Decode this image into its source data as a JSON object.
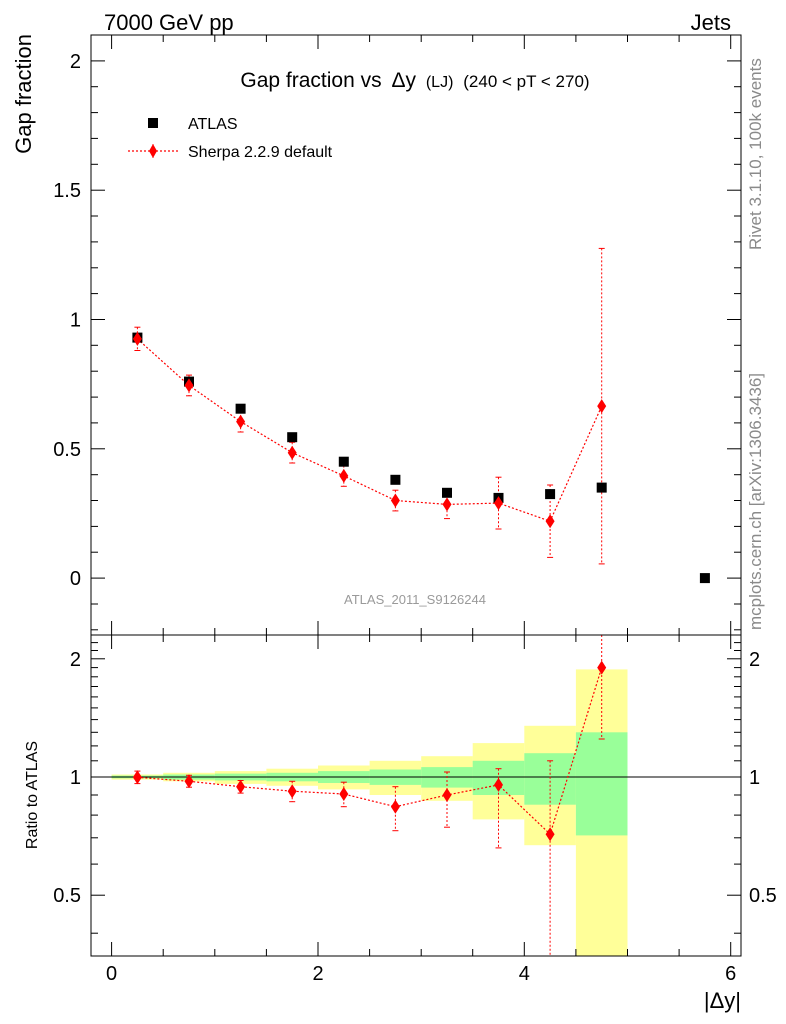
{
  "header": {
    "left": "7000 GeV pp",
    "right": "Jets"
  },
  "side_labels": {
    "rivet": "Rivet 3.1.10,  100k events",
    "mcplots": "mcplots.cern.ch [arXiv:1306.3436]"
  },
  "watermark": "ATLAS_2011_S9126244",
  "chart_data": [
    {
      "type": "scatter",
      "panel": "main",
      "title": {
        "main": "Gap fraction vs",
        "symbol": "Δy",
        "sub": "(LJ)",
        "range": "(240 < pT < 270)"
      },
      "xlabel": "|Δy|",
      "ylabel": "Gap fraction",
      "xlim": [
        -0.2,
        6.1
      ],
      "ylim": [
        -0.22,
        2.1
      ],
      "y_ticks": [
        "0",
        "0.5",
        "1",
        "1.5",
        "2"
      ],
      "y_tick_values": [
        0,
        0.5,
        1,
        1.5,
        2
      ],
      "legend_position": "top-left",
      "series": [
        {
          "name": "ATLAS",
          "color": "#000000",
          "marker": "square",
          "x": [
            0.25,
            0.75,
            1.25,
            1.75,
            2.25,
            2.75,
            3.25,
            3.75,
            4.25,
            4.75,
            5.75
          ],
          "y": [
            0.93,
            0.76,
            0.655,
            0.545,
            0.45,
            0.38,
            0.33,
            0.31,
            0.325,
            0.35,
            0.0
          ]
        },
        {
          "name": "Sherpa 2.2.9 default",
          "color": "#ff0000",
          "marker": "diamond",
          "x": [
            0.25,
            0.75,
            1.25,
            1.75,
            2.25,
            2.75,
            3.25,
            3.75,
            4.25,
            4.75
          ],
          "y": [
            0.925,
            0.745,
            0.605,
            0.485,
            0.395,
            0.3,
            0.285,
            0.29,
            0.22,
            0.665
          ],
          "y_err": [
            0.045,
            0.04,
            0.04,
            0.04,
            0.04,
            0.04,
            0.055,
            0.1,
            0.14,
            0.61
          ]
        }
      ]
    },
    {
      "type": "scatter",
      "panel": "ratio",
      "xlabel": "|Δy|",
      "ylabel": "Ratio to ATLAS",
      "xlim": [
        -0.2,
        6.1
      ],
      "ylim": [
        0.35,
        2.3
      ],
      "x_ticks": [
        "0",
        "2",
        "4",
        "6"
      ],
      "x_tick_values": [
        0,
        2,
        4,
        6
      ],
      "y_ticks": [
        "0.5",
        "1",
        "2"
      ],
      "y_tick_values": [
        0.5,
        1,
        2
      ],
      "reference_line": 1,
      "bands": {
        "bin_edges": [
          0,
          0.5,
          1,
          1.5,
          2,
          2.5,
          3,
          3.5,
          4,
          4.5,
          5
        ],
        "green": [
          [
            0.992,
            1.008
          ],
          [
            0.985,
            1.015
          ],
          [
            0.98,
            1.02
          ],
          [
            0.975,
            1.025
          ],
          [
            0.965,
            1.035
          ],
          [
            0.955,
            1.045
          ],
          [
            0.94,
            1.06
          ],
          [
            0.9,
            1.1
          ],
          [
            0.85,
            1.15
          ],
          [
            0.71,
            1.3
          ]
        ],
        "yellow": [
          [
            0.985,
            1.015
          ],
          [
            0.975,
            1.025
          ],
          [
            0.96,
            1.035
          ],
          [
            0.95,
            1.05
          ],
          [
            0.93,
            1.07
          ],
          [
            0.9,
            1.1
          ],
          [
            0.87,
            1.13
          ],
          [
            0.78,
            1.22
          ],
          [
            0.67,
            1.35
          ],
          [
            0.3,
            1.88
          ]
        ],
        "green_color": "#99ff99",
        "yellow_color": "#ffff99"
      },
      "series": [
        {
          "name": "Sherpa 2.2.9 default",
          "color": "#ff0000",
          "x": [
            0.25,
            0.75,
            1.25,
            1.75,
            2.25,
            2.75,
            3.25,
            3.75,
            4.25,
            4.75
          ],
          "y": [
            0.998,
            0.975,
            0.945,
            0.92,
            0.905,
            0.84,
            0.9,
            0.955,
            0.715,
            1.9
          ],
          "y_lo": [
            0.962,
            0.942,
            0.91,
            0.865,
            0.84,
            0.73,
            0.745,
            0.66,
            0.3,
            1.25
          ],
          "y_hi": [
            1.035,
            1.01,
            0.98,
            0.975,
            0.97,
            0.945,
            1.03,
            1.05,
            1.1,
            2.3
          ]
        }
      ]
    }
  ]
}
